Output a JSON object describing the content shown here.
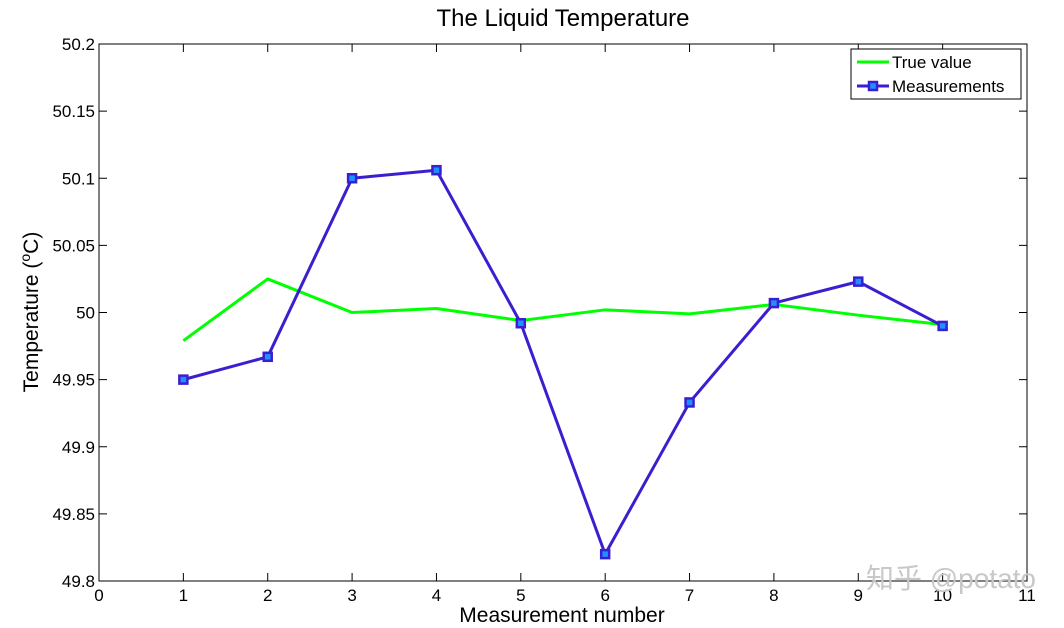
{
  "chart_data": {
    "type": "line",
    "title": "The Liquid  Temperature",
    "xlabel": "Measurement number",
    "ylabel": "Temperature (°C)",
    "xlim": [
      0,
      11
    ],
    "ylim": [
      49.8,
      50.2
    ],
    "xticks": [
      0,
      1,
      2,
      3,
      4,
      5,
      6,
      7,
      8,
      9,
      10,
      11
    ],
    "yticks": [
      "49.8",
      "49.85",
      "49.9",
      "49.95",
      "50",
      "50.05",
      "50.1",
      "50.15",
      "50.2"
    ],
    "grid": false,
    "legend_position": "top-right",
    "series": [
      {
        "name": "True value",
        "color": "#00ff00",
        "marker": "none",
        "x": [
          1,
          2,
          3,
          4,
          5,
          6,
          7,
          8,
          9,
          10
        ],
        "y": [
          49.979,
          50.025,
          50.0,
          50.003,
          49.994,
          50.002,
          49.999,
          50.006,
          49.998,
          49.991
        ]
      },
      {
        "name": "Measurements",
        "color": "#3a1fd0",
        "marker_fill": "#1e90ff",
        "marker": "square",
        "x": [
          1,
          2,
          3,
          4,
          5,
          6,
          7,
          8,
          9,
          10
        ],
        "y": [
          49.95,
          49.967,
          50.1,
          50.106,
          49.992,
          49.82,
          49.933,
          50.007,
          50.023,
          49.99
        ]
      }
    ]
  },
  "watermark": "知乎 @potato"
}
